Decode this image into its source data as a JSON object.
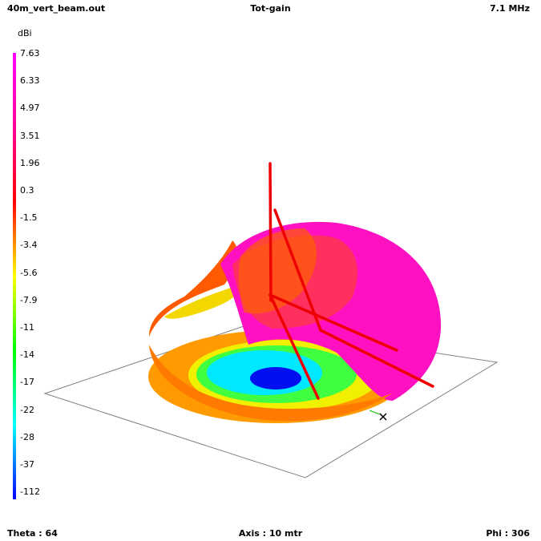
{
  "header": {
    "file_name": "40m_vert_beam.out",
    "quantity": "Tot-gain",
    "frequency": "7.1 MHz"
  },
  "footer": {
    "theta": "Theta : 64",
    "axis": "Axis : 10 mtr",
    "phi": "Phi : 306"
  },
  "chart_data": {
    "type": "3d-radiation-pattern",
    "color_scale": {
      "unit": "dBi",
      "ticks": [
        "7.63",
        "6.33",
        "4.97",
        "3.51",
        "1.96",
        "0.3",
        "-1.5",
        "-3.4",
        "-5.6",
        "-7.9",
        "-11",
        "-14",
        "-17",
        "-22",
        "-28",
        "-37",
        "-112"
      ],
      "colors": [
        "#ff00ff",
        "#ff0099",
        "#ff0000",
        "#ffff00",
        "#00ff00",
        "#00ffff",
        "#0000ff"
      ],
      "max": 7.63,
      "min": -112
    },
    "view": {
      "theta_deg": 64,
      "phi_deg": 306,
      "axis_length_m": 10
    },
    "main_lobe_direction": "toward elements, low elevation",
    "pattern_colors": {
      "max": "#ff00ff",
      "mid": "#ff8800",
      "low": "#ffff00",
      "null": "#00ffff",
      "deep_null": "#0000ff"
    },
    "antenna_color": "#ff0000",
    "ground_plane_color": "#808080",
    "marker": "x"
  }
}
